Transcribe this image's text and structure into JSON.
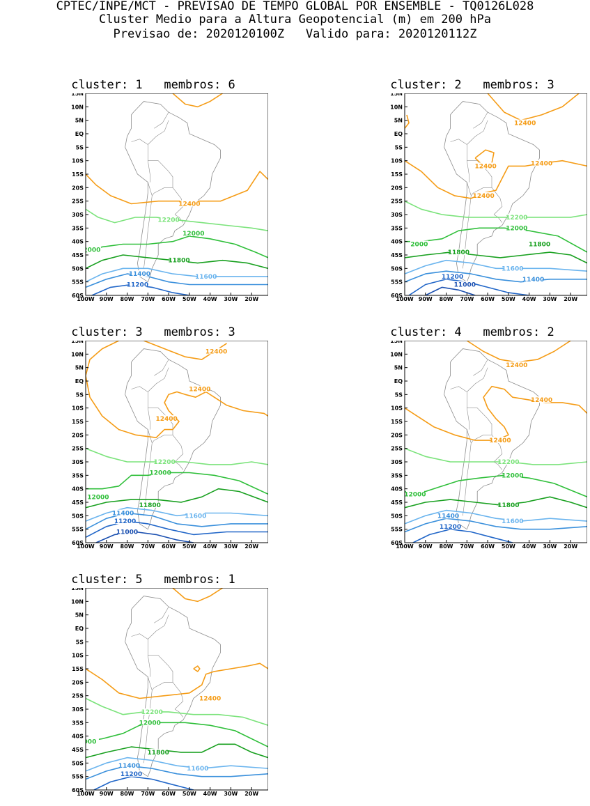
{
  "header": {
    "line1": "CPTEC/INPE/MCT - PREVISAO DE TEMPO GLOBAL POR ENSEMBLE - TQ0126L028",
    "line2": "Cluster Medio para a Altura Geopotencial (m) em 200 hPa",
    "line3": "Previsao de: 2020120100Z   Valido para: 2020120112Z"
  },
  "map": {
    "lat_labels": [
      "15N",
      "10N",
      "5N",
      "EQ",
      "5S",
      "10S",
      "15S",
      "20S",
      "25S",
      "30S",
      "35S",
      "40S",
      "45S",
      "50S",
      "55S",
      "60S"
    ],
    "lon_labels": [
      "100W",
      "90W",
      "80W",
      "70W",
      "60W",
      "50W",
      "40W",
      "30W",
      "20W"
    ],
    "lat_range": [
      -60,
      15
    ],
    "lon_range": [
      -100,
      -12
    ],
    "colors": {
      "c12400": "#f59c16",
      "c12200": "#7be37b",
      "c12000": "#2fbf3a",
      "c11800": "#18a01f",
      "c11600": "#6ab4ee",
      "c11400": "#3a90dc",
      "c11200": "#2166c8",
      "c11000": "#1a4fb0",
      "coast": "#8c8c8c"
    }
  },
  "panels": [
    {
      "title": "cluster: 1   membros: 6",
      "labels": [
        {
          "text": "12400",
          "lon": -50,
          "lat": -26,
          "color": "c12400"
        },
        {
          "text": "12200",
          "lon": -60,
          "lat": -32,
          "color": "c12200"
        },
        {
          "text": "12000",
          "lon": -48,
          "lat": -37,
          "color": "c12000"
        },
        {
          "text": "2000",
          "lon": -97,
          "lat": -43,
          "color": "c12000"
        },
        {
          "text": "11800",
          "lon": -55,
          "lat": -47,
          "color": "c11800"
        },
        {
          "text": "11600",
          "lon": -42,
          "lat": -53,
          "color": "c11600"
        },
        {
          "text": "11400",
          "lon": -74,
          "lat": -52,
          "color": "c11400"
        },
        {
          "text": "11200",
          "lon": -75,
          "lat": -56,
          "color": "c11200"
        }
      ]
    },
    {
      "title": "cluster: 2   membros: 3",
      "labels": [
        {
          "text": "12400",
          "lon": -42,
          "lat": 4,
          "color": "c12400"
        },
        {
          "text": "12400",
          "lon": -61,
          "lat": -12,
          "color": "c12400"
        },
        {
          "text": "12400",
          "lon": -34,
          "lat": -11,
          "color": "c12400"
        },
        {
          "text": "12400",
          "lon": -62,
          "lat": -23,
          "color": "c12400"
        },
        {
          "text": "12200",
          "lon": -46,
          "lat": -31,
          "color": "c12200"
        },
        {
          "text": "12000",
          "lon": -46,
          "lat": -35,
          "color": "c12000"
        },
        {
          "text": "2000",
          "lon": -93,
          "lat": -41,
          "color": "c12000"
        },
        {
          "text": "11800",
          "lon": -74,
          "lat": -44,
          "color": "c11800"
        },
        {
          "text": "11800",
          "lon": -35,
          "lat": -41,
          "color": "c11800"
        },
        {
          "text": "11600",
          "lon": -48,
          "lat": -50,
          "color": "c11600"
        },
        {
          "text": "11400",
          "lon": -38,
          "lat": -54,
          "color": "c11400"
        },
        {
          "text": "11200",
          "lon": -77,
          "lat": -53,
          "color": "c11200"
        },
        {
          "text": "11000",
          "lon": -71,
          "lat": -56,
          "color": "c11000"
        }
      ]
    },
    {
      "title": "cluster: 3   membros: 3",
      "labels": [
        {
          "text": "12400",
          "lon": -37,
          "lat": 11,
          "color": "c12400"
        },
        {
          "text": "12400",
          "lon": -45,
          "lat": -3,
          "color": "c12400"
        },
        {
          "text": "12400",
          "lon": -61,
          "lat": -14,
          "color": "c12400"
        },
        {
          "text": "12200",
          "lon": -62,
          "lat": -30,
          "color": "c12200"
        },
        {
          "text": "12000",
          "lon": -64,
          "lat": -34,
          "color": "c12000"
        },
        {
          "text": "12000",
          "lon": -94,
          "lat": -43,
          "color": "c12000"
        },
        {
          "text": "11800",
          "lon": -69,
          "lat": -46,
          "color": "c11800"
        },
        {
          "text": "11600",
          "lon": -47,
          "lat": -50,
          "color": "c11600"
        },
        {
          "text": "11400",
          "lon": -82,
          "lat": -49,
          "color": "c11400"
        },
        {
          "text": "11200",
          "lon": -81,
          "lat": -52,
          "color": "c11200"
        },
        {
          "text": "11000",
          "lon": -80,
          "lat": -56,
          "color": "c11000"
        }
      ]
    },
    {
      "title": "cluster: 4   membros: 2",
      "labels": [
        {
          "text": "12400",
          "lon": -46,
          "lat": 6,
          "color": "c12400"
        },
        {
          "text": "12400",
          "lon": -34,
          "lat": -7,
          "color": "c12400"
        },
        {
          "text": "12400",
          "lon": -54,
          "lat": -22,
          "color": "c12400"
        },
        {
          "text": "12200",
          "lon": -50,
          "lat": -30,
          "color": "c12200"
        },
        {
          "text": "12000",
          "lon": -48,
          "lat": -35,
          "color": "c12000"
        },
        {
          "text": "12000",
          "lon": -95,
          "lat": -42,
          "color": "c12000"
        },
        {
          "text": "11800",
          "lon": -50,
          "lat": -46,
          "color": "c11800"
        },
        {
          "text": "11600",
          "lon": -48,
          "lat": -52,
          "color": "c11600"
        },
        {
          "text": "11400",
          "lon": -79,
          "lat": -50,
          "color": "c11400"
        },
        {
          "text": "11200",
          "lon": -78,
          "lat": -54,
          "color": "c11200"
        }
      ]
    },
    {
      "title": "cluster: 5   membros: 1",
      "labels": [
        {
          "text": "12400",
          "lon": -40,
          "lat": -26,
          "color": "c12400"
        },
        {
          "text": "12200",
          "lon": -68,
          "lat": -31,
          "color": "c12200"
        },
        {
          "text": "12000",
          "lon": -69,
          "lat": -35,
          "color": "c12000"
        },
        {
          "text": "000",
          "lon": -98,
          "lat": -42,
          "color": "c12000"
        },
        {
          "text": "11800",
          "lon": -65,
          "lat": -46,
          "color": "c11800"
        },
        {
          "text": "11600",
          "lon": -46,
          "lat": -52,
          "color": "c11600"
        },
        {
          "text": "11400",
          "lon": -79,
          "lat": -51,
          "color": "c11400"
        },
        {
          "text": "11200",
          "lon": -78,
          "lat": -54,
          "color": "c11200"
        }
      ]
    }
  ]
}
